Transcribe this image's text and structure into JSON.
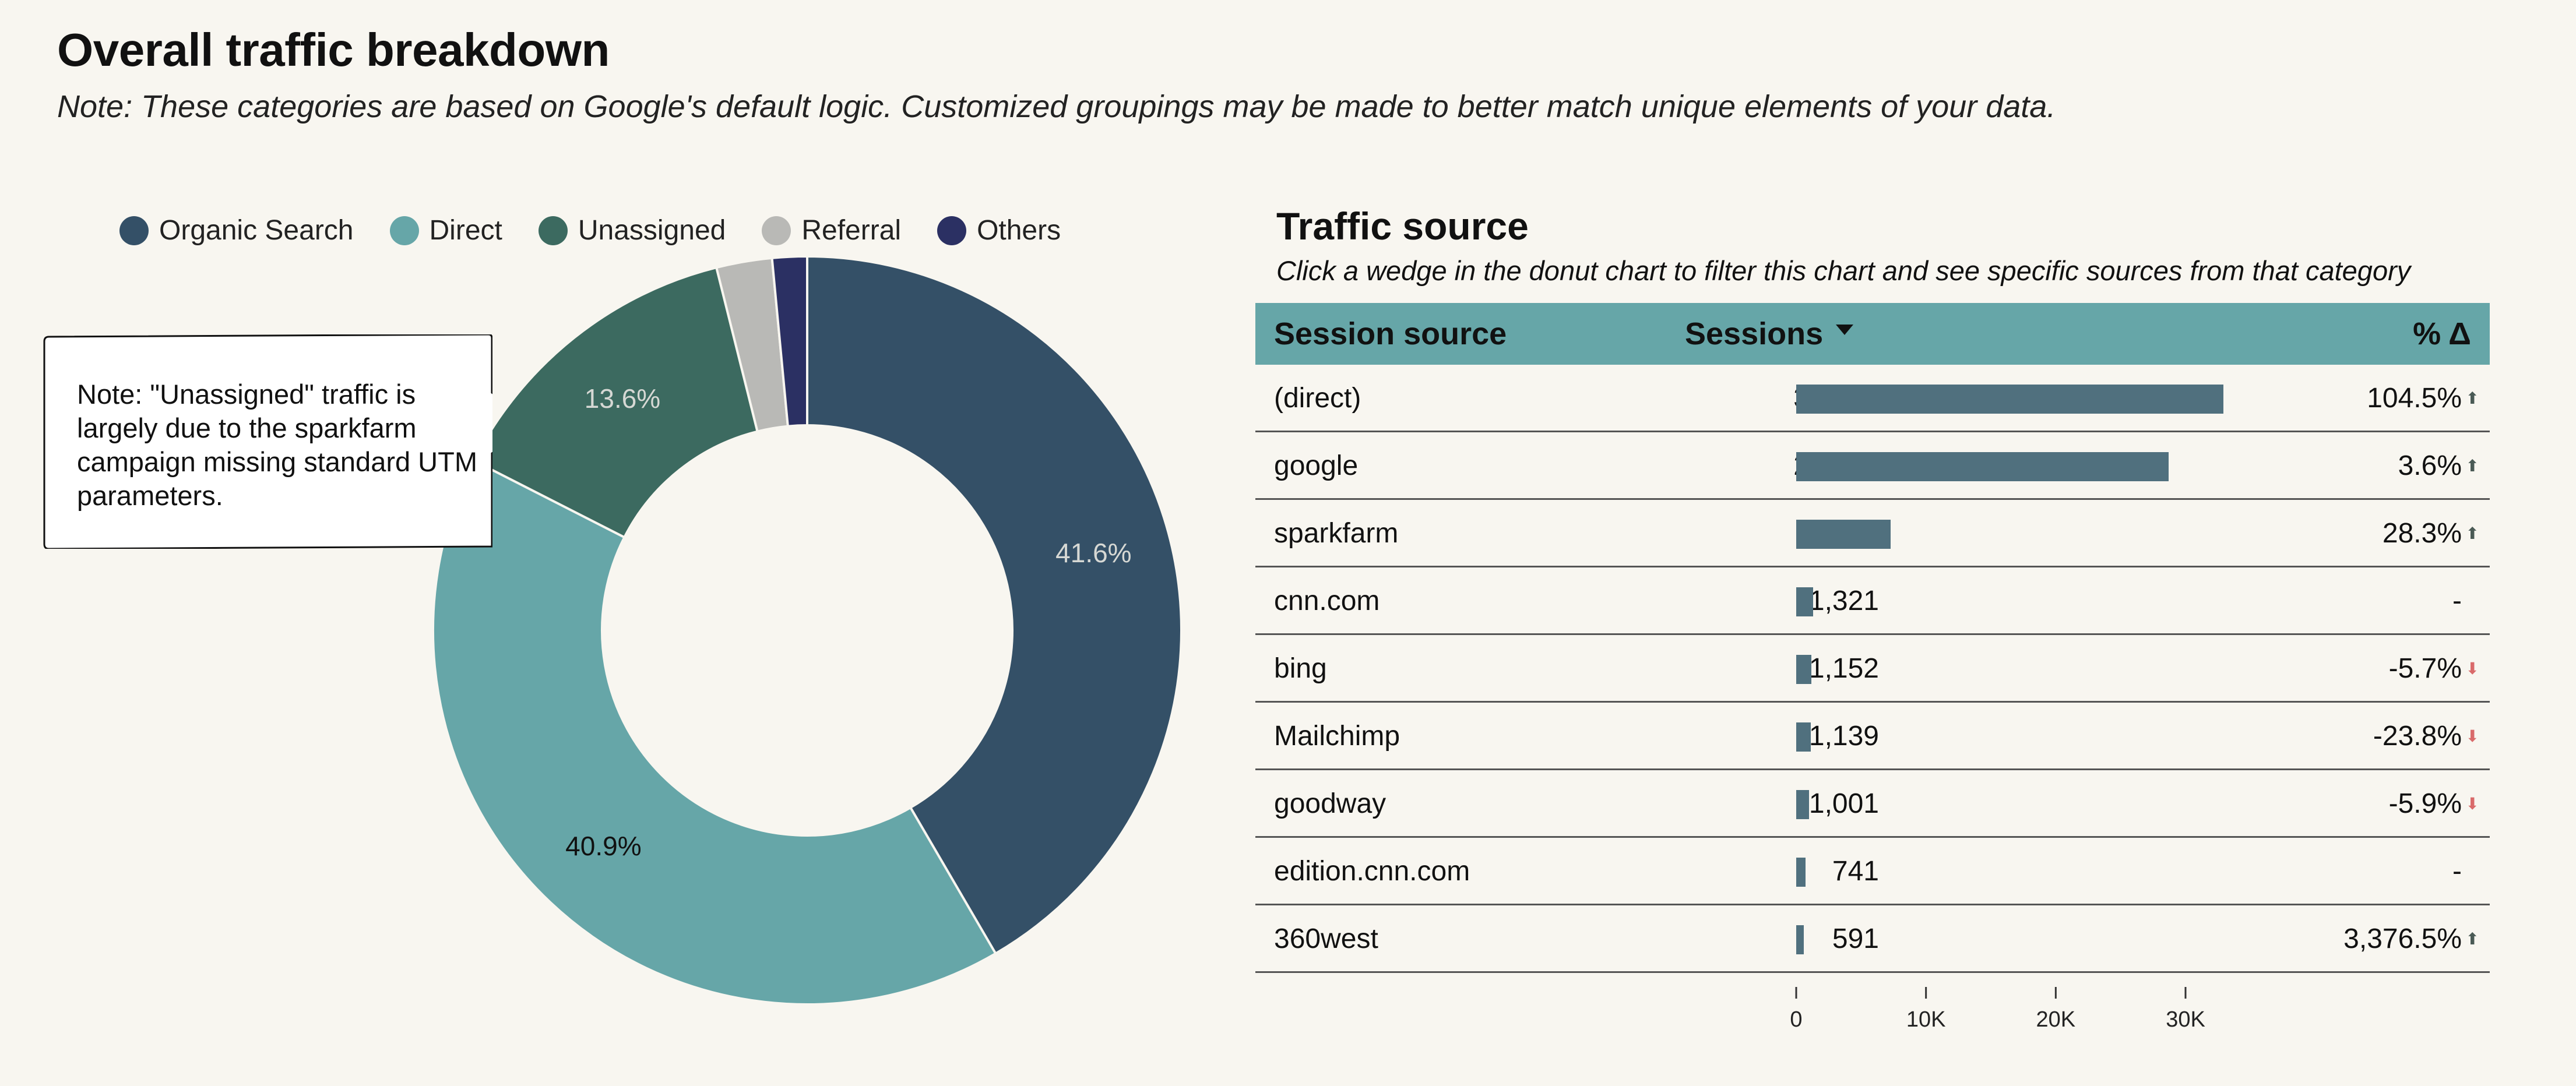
{
  "header": {
    "title": "Overall traffic breakdown",
    "note": "Note: These categories are based on Google's default logic. Customized groupings may be made to better match unique elements of your data."
  },
  "callout": {
    "text": "Note: \"Unassigned\" traffic is largely due to the sparkfarm campaign missing standard UTM parameters."
  },
  "traffic_source": {
    "title": "Traffic source",
    "subtitle": "Click a wedge in the donut chart to filter this chart and see specific sources from that category",
    "col_source": "Session source",
    "col_sessions": "Sessions",
    "col_delta": "% Δ"
  },
  "colors": {
    "organic_search": "#345067",
    "direct": "#66a6a8",
    "unassigned": "#3c6a60",
    "referral": "#b9b9b6",
    "others": "#2b3063",
    "bar": "#50707e",
    "header_bg": "#66a6a8",
    "down": "#d96a6a"
  },
  "chart_data": [
    {
      "type": "pie",
      "style": "donut",
      "legend_position": "top",
      "series": [
        {
          "name": "Organic Search",
          "value": 41.6,
          "label": "41.6%"
        },
        {
          "name": "Direct",
          "value": 40.9,
          "label": "40.9%"
        },
        {
          "name": "Unassigned",
          "value": 13.6,
          "label": "13.6%"
        },
        {
          "name": "Referral",
          "value": 2.4,
          "label": ""
        },
        {
          "name": "Others",
          "value": 1.5,
          "label": ""
        }
      ]
    },
    {
      "type": "table",
      "title": "Traffic source",
      "columns": [
        "Session source",
        "Sessions",
        "% Δ"
      ],
      "rows": [
        {
          "source": "(direct)",
          "sessions": 32912,
          "sessions_label": "32,912",
          "delta": "104.5%",
          "trend": "up"
        },
        {
          "source": "google",
          "sessions": 28719,
          "sessions_label": "28,719",
          "delta": "3.6%",
          "trend": "up"
        },
        {
          "source": "sparkfarm",
          "sessions": 7296,
          "sessions_label": "7,296",
          "delta": "28.3%",
          "trend": "up"
        },
        {
          "source": "cnn.com",
          "sessions": 1321,
          "sessions_label": "1,321",
          "delta": "-",
          "trend": "none"
        },
        {
          "source": "bing",
          "sessions": 1152,
          "sessions_label": "1,152",
          "delta": "-5.7%",
          "trend": "down"
        },
        {
          "source": "Mailchimp",
          "sessions": 1139,
          "sessions_label": "1,139",
          "delta": "-23.8%",
          "trend": "down"
        },
        {
          "source": "goodway",
          "sessions": 1001,
          "sessions_label": "1,001",
          "delta": "-5.9%",
          "trend": "down"
        },
        {
          "source": "edition.cnn.com",
          "sessions": 741,
          "sessions_label": "741",
          "delta": "-",
          "trend": "none"
        },
        {
          "source": "360west",
          "sessions": 591,
          "sessions_label": "591",
          "delta": "3,376.5%",
          "trend": "up"
        }
      ],
      "bar_axis": {
        "ticks": [
          0,
          10000,
          20000,
          30000
        ],
        "tick_labels": [
          "0",
          "10K",
          "20K",
          "30K"
        ],
        "max": 30000
      }
    }
  ]
}
